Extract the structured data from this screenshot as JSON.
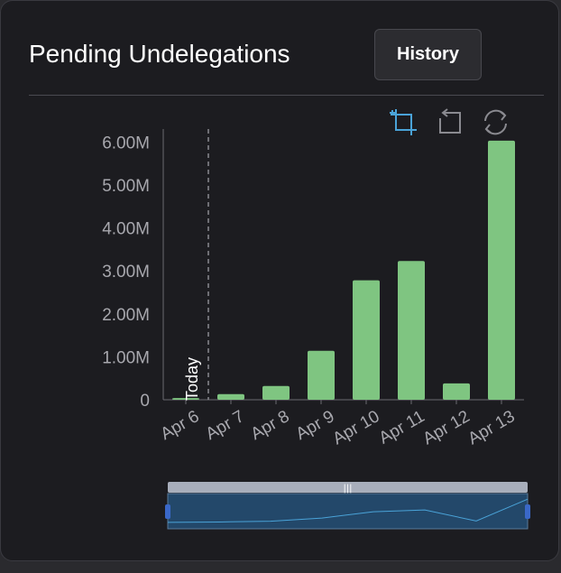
{
  "header": {
    "title": "Pending Undelegations",
    "history_label": "History"
  },
  "toolbox": {
    "zoom_icon": "data-zoom-icon",
    "reset_icon": "zoom-reset-icon",
    "restore_icon": "restore-icon"
  },
  "colors": {
    "bar": "#7fc581",
    "accent": "#4aa3d8",
    "axis_text": "#a8a8ae",
    "slider_fill": "#23486a"
  },
  "chart_data": {
    "type": "bar",
    "categories": [
      "Apr 6",
      "Apr 7",
      "Apr 8",
      "Apr 9",
      "Apr 10",
      "Apr 11",
      "Apr 12",
      "Apr 13"
    ],
    "values": [
      40000,
      130000,
      320000,
      1140000,
      2780000,
      3230000,
      380000,
      6030000
    ],
    "y_ticks": [
      "0",
      "1.00M",
      "2.00M",
      "3.00M",
      "4.00M",
      "5.00M",
      "6.00M"
    ],
    "ylim": [
      0,
      6300000
    ],
    "marker": {
      "label": "Today",
      "position": "between Apr 6 and Apr 7"
    },
    "grid": false,
    "legend": "none",
    "data_zoom_slider": true
  }
}
